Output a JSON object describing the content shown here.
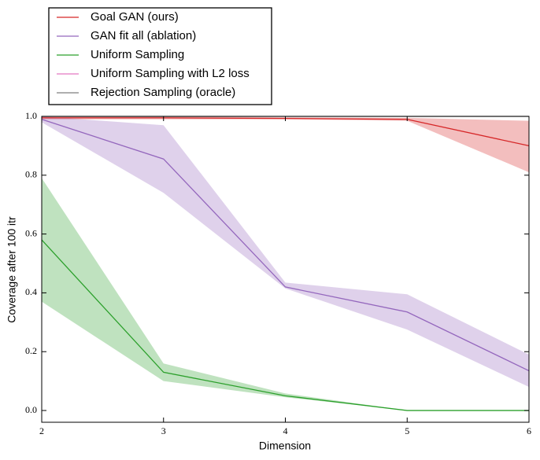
{
  "chart_data": {
    "type": "line",
    "xlabel": "Dimension",
    "ylabel": "Coverage after 100 itr",
    "x": [
      2,
      3,
      4,
      5,
      6
    ],
    "xlim": [
      2,
      6
    ],
    "xticks": [
      2,
      3,
      4,
      5,
      6
    ],
    "ylim": [
      -0.04,
      1.0
    ],
    "yticks": [
      {
        "value": 0,
        "label": "0.0"
      },
      0.2,
      0.4,
      0.6,
      0.8,
      {
        "value": 1,
        "label": "1.0"
      }
    ],
    "legend": "upper left",
    "series": [
      {
        "name": "Goal GAN (ours)",
        "color": "#d62728",
        "values": [
          0.995,
          0.995,
          0.993,
          0.99,
          0.9
        ],
        "lower": [
          0.99,
          0.99,
          0.99,
          0.985,
          0.81
        ],
        "upper": [
          1.0,
          1.0,
          0.997,
          0.995,
          0.985
        ]
      },
      {
        "name": "GAN fit all (ablation)",
        "color": "#9467bd",
        "values": [
          0.99,
          0.855,
          0.42,
          0.335,
          0.135
        ],
        "lower": [
          0.98,
          0.74,
          0.415,
          0.275,
          0.08
        ],
        "upper": [
          1.0,
          0.97,
          0.435,
          0.395,
          0.19
        ]
      },
      {
        "name": "Uniform Sampling",
        "color": "#2ca02c",
        "values": [
          0.58,
          0.13,
          0.05,
          0.0,
          0.0
        ],
        "lower": [
          0.37,
          0.1,
          0.045,
          0.0,
          0.0
        ],
        "upper": [
          0.79,
          0.16,
          0.058,
          0.0,
          0.0
        ]
      },
      {
        "name": "Uniform Sampling with L2 loss",
        "color": "#e377c2",
        "values": [
          null,
          null,
          null,
          null,
          null
        ]
      },
      {
        "name": "Rejection Sampling (oracle)",
        "color": "#7f7f7f",
        "values": [
          1.0,
          1.0,
          1.0,
          1.0,
          1.0
        ]
      }
    ]
  }
}
